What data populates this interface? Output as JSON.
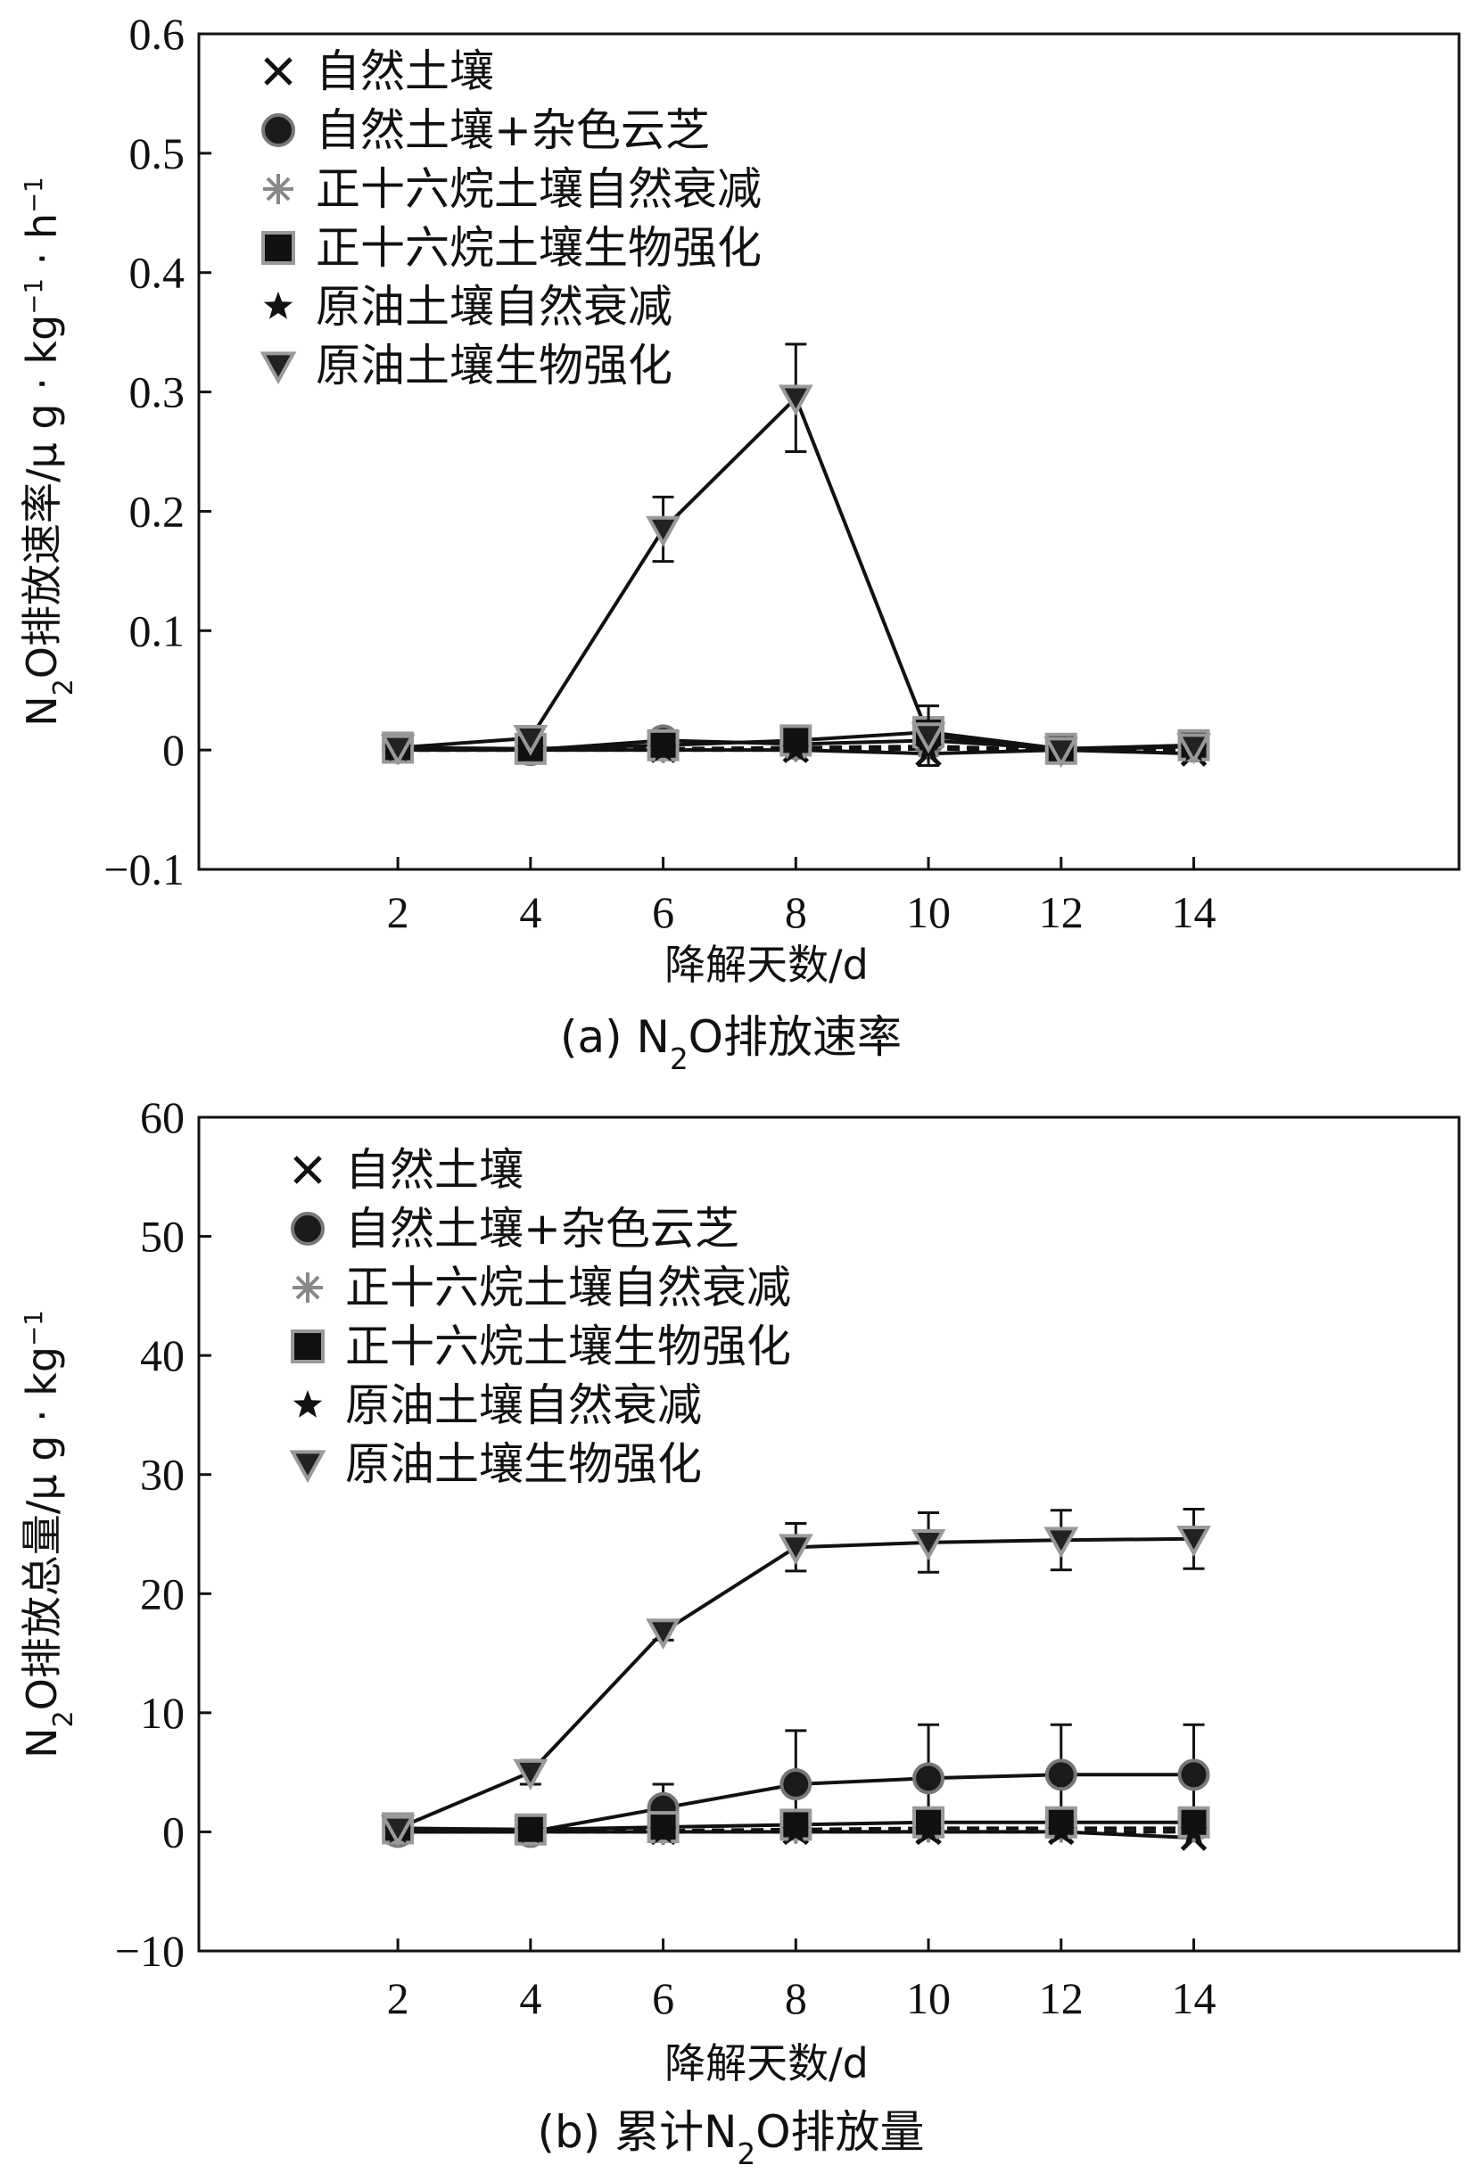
{
  "chart_data": [
    {
      "type": "line",
      "caption": "(a) N2O排放速率",
      "xlabel": "降解天数/d",
      "ylabel": "N2O排放速率/μ g · kg-1 · h-1",
      "x": [
        2,
        4,
        6,
        8,
        10,
        12,
        14
      ],
      "x_ticks": [
        "2",
        "4",
        "6",
        "8",
        "10",
        "12",
        "14"
      ],
      "xlim": [
        -1,
        18
      ],
      "ylim": [
        -0.1,
        0.6
      ],
      "y_ticks": [
        "−0.1",
        "0",
        "0.1",
        "0.2",
        "0.3",
        "0.4",
        "0.5",
        "0.6"
      ],
      "legend_position": "top-left",
      "series": [
        {
          "name": "自然土壤",
          "marker": "x",
          "line": "solid",
          "values": [
            0.0,
            0.0,
            0.0,
            0.0,
            -0.003,
            0.0,
            -0.003
          ]
        },
        {
          "name": "自然土壤+杂色云芝",
          "marker": "circle",
          "line": "solid",
          "values": [
            0.002,
            0.0,
            0.008,
            0.005,
            0.008,
            0.001,
            0.003
          ]
        },
        {
          "name": "正十六烷土壤自然衰减",
          "marker": "asterisk",
          "line": "dashed",
          "values": [
            0.0,
            0.0,
            0.001,
            0.002,
            0.003,
            0.0,
            0.002
          ]
        },
        {
          "name": "正十六烷土壤生物强化",
          "marker": "square",
          "line": "solid",
          "values": [
            0.002,
            0.001,
            0.004,
            0.008,
            0.015,
            0.001,
            0.004
          ]
        },
        {
          "name": "原油土壤自然衰减",
          "marker": "star",
          "line": "dashed",
          "values": [
            0.0,
            0.0,
            0.0,
            0.0,
            0.001,
            0.0,
            0.0
          ]
        },
        {
          "name": "原油土壤生物强化",
          "marker": "triangle-down",
          "line": "solid",
          "values": [
            0.002,
            0.01,
            0.185,
            0.295,
            0.012,
            0.0,
            0.003
          ],
          "error": [
            0.003,
            0.003,
            0.027,
            0.045,
            0.025,
            0.003,
            0.003
          ]
        }
      ]
    },
    {
      "type": "line",
      "caption": "(b) 累计N2O排放量",
      "xlabel": "降解天数/d",
      "ylabel": "N2O排放总量/μ g · kg-1",
      "x": [
        2,
        4,
        6,
        8,
        10,
        12,
        14
      ],
      "x_ticks": [
        "2",
        "4",
        "6",
        "8",
        "10",
        "12",
        "14"
      ],
      "xlim": [
        -1,
        18
      ],
      "ylim": [
        -10,
        60
      ],
      "y_ticks": [
        "−10",
        "0",
        "10",
        "20",
        "30",
        "40",
        "50",
        "60"
      ],
      "legend_position": "top-left",
      "series": [
        {
          "name": "自然土壤",
          "marker": "x",
          "line": "solid",
          "values": [
            0.0,
            0.0,
            0.0,
            0.0,
            0.0,
            0.0,
            -0.5
          ]
        },
        {
          "name": "自然土壤+杂色云芝",
          "marker": "circle",
          "line": "solid",
          "values": [
            0.0,
            0.0,
            2.0,
            4.0,
            4.5,
            4.8,
            4.8
          ],
          "error": [
            0.3,
            0.3,
            2.0,
            4.5,
            4.5,
            4.2,
            4.2
          ]
        },
        {
          "name": "正十六烷土壤自然衰减",
          "marker": "asterisk",
          "line": "dashed",
          "values": [
            0.0,
            0.0,
            0.1,
            0.2,
            0.3,
            0.3,
            0.3
          ]
        },
        {
          "name": "正十六烷土壤生物强化",
          "marker": "square",
          "line": "solid",
          "values": [
            0.3,
            0.2,
            0.4,
            0.6,
            0.8,
            0.8,
            0.8
          ]
        },
        {
          "name": "原油土壤自然衰减",
          "marker": "star",
          "line": "dashed",
          "values": [
            0.0,
            0.0,
            0.0,
            0.0,
            0.0,
            0.0,
            0.0
          ]
        },
        {
          "name": "原油土壤生物强化",
          "marker": "triangle-down",
          "line": "solid",
          "values": [
            0.3,
            5.0,
            16.8,
            23.9,
            24.3,
            24.5,
            24.6
          ],
          "error": [
            0.3,
            1.0,
            0.7,
            2.0,
            2.5,
            2.5,
            2.5
          ]
        }
      ]
    }
  ]
}
